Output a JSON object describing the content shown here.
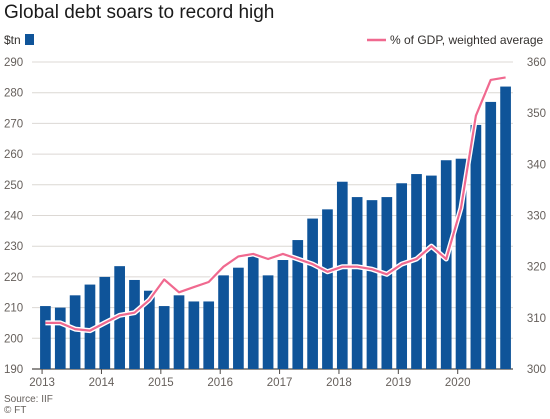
{
  "chart_data": {
    "type": "bar+line",
    "title": "Global debt soars to record high",
    "legend": {
      "bar_label": "$tn",
      "line_label": "% of GDP, weighted average",
      "placement": "top"
    },
    "x_tick_labels": [
      "2013",
      "2014",
      "2015",
      "2016",
      "2017",
      "2018",
      "2019",
      "2020"
    ],
    "y_left": {
      "min": 190,
      "max": 290,
      "ticks": [
        190,
        200,
        210,
        220,
        230,
        240,
        250,
        260,
        270,
        280,
        290
      ]
    },
    "y_right": {
      "min": 300,
      "max": 360,
      "ticks": [
        300,
        310,
        320,
        330,
        340,
        350,
        360
      ]
    },
    "grid": true,
    "series": [
      {
        "type": "bar",
        "axis": "left",
        "color": "#0f5499",
        "values": [
          210.5,
          210,
          214,
          217.5,
          220,
          223.5,
          219,
          215.5,
          210.5,
          214,
          212,
          212,
          220.5,
          223,
          227,
          220.5,
          225.5,
          232,
          239,
          242,
          251,
          246,
          245,
          246,
          250.5,
          253.5,
          253,
          258,
          258.5,
          269.5,
          277,
          282
        ]
      },
      {
        "name": "% of GDP, weighted average",
        "type": "line",
        "axis": "right",
        "color": "#f0698f",
        "values": [
          309,
          309,
          307.8,
          307.5,
          309,
          310.5,
          311,
          313.5,
          317.5,
          315,
          316,
          317,
          320,
          322,
          322.5,
          321.5,
          322.5,
          321.5,
          320.5,
          319,
          320,
          320,
          319.5,
          318.5,
          320.5,
          321.5,
          324,
          321.5,
          331.5,
          349.5,
          356.5,
          357
        ]
      }
    ]
  },
  "footer": {
    "source": "Source: IIF",
    "credit": "© FT"
  }
}
